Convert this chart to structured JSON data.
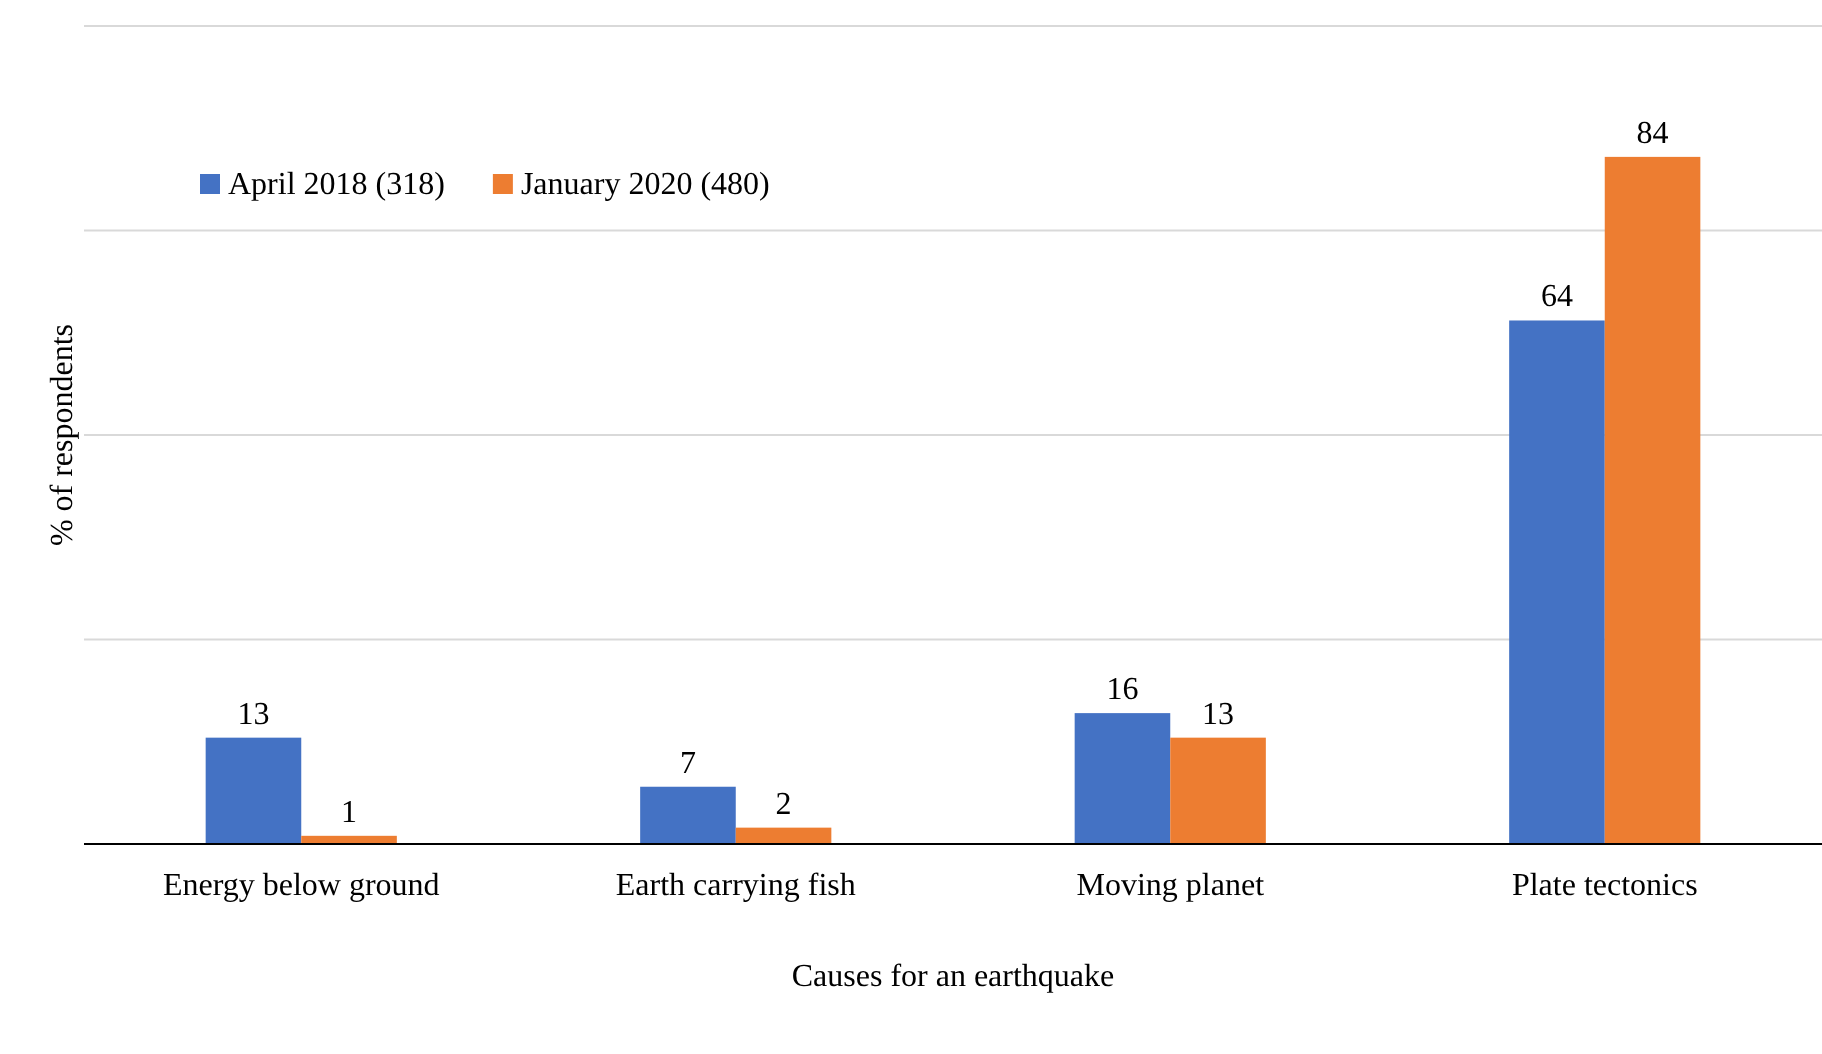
{
  "chart_data": {
    "type": "bar",
    "xlabel": "Causes for an earthquake",
    "ylabel": "% of  respondents",
    "categories": [
      "Energy below ground",
      "Earth carrying fish",
      "Moving planet",
      "Plate tectonics"
    ],
    "series": [
      {
        "name": "April 2018 (318)",
        "color": "#4472c4",
        "values": [
          13,
          7,
          16,
          64
        ]
      },
      {
        "name": "January 2020 (480)",
        "color": "#ed7d31",
        "values": [
          1,
          2,
          13,
          84
        ]
      }
    ],
    "ylim": [
      0,
      100
    ],
    "yticks": [
      {
        "value": 0,
        "label": null
      },
      {
        "value": 25,
        "label": null
      },
      {
        "value": 50,
        "label": null
      },
      {
        "value": 75,
        "label": null
      },
      {
        "value": 100,
        "label": null
      }
    ],
    "tick_labels": "x",
    "grid": "y",
    "data_labels": true,
    "legend": "top left"
  }
}
